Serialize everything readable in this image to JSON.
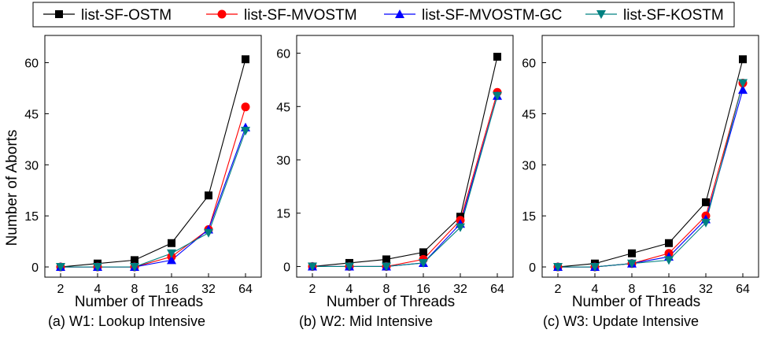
{
  "legend": {
    "entries": [
      {
        "label": "list-SF-OSTM",
        "color": "#000000",
        "marker": "square"
      },
      {
        "label": "list-SF-MVOSTM",
        "color": "#ff0000",
        "marker": "circle"
      },
      {
        "label": "list-SF-MVOSTM-GC",
        "color": "#0000ff",
        "marker": "triangle-up"
      },
      {
        "label": "list-SF-KOSTM",
        "color": "#008080",
        "marker": "triangle-down"
      }
    ]
  },
  "chart_data": [
    {
      "type": "line",
      "title": "(a) W1: Lookup Intensive",
      "xlabel": "Number of Threads",
      "ylabel": "Number of Aborts",
      "categories": [
        "2",
        "4",
        "8",
        "16",
        "32",
        "64"
      ],
      "yticks": [
        "0",
        "15",
        "30",
        "45",
        "60"
      ],
      "ylim": [
        -3,
        68
      ],
      "grid": false,
      "series": [
        {
          "name": "list-SF-OSTM",
          "values": [
            0,
            1,
            2,
            7,
            21,
            61
          ]
        },
        {
          "name": "list-SF-MVOSTM",
          "values": [
            0,
            0,
            0,
            3,
            11,
            47
          ]
        },
        {
          "name": "list-SF-MVOSTM-GC",
          "values": [
            0,
            0,
            0,
            2,
            11,
            41
          ]
        },
        {
          "name": "list-SF-KOSTM",
          "values": [
            0,
            0,
            0,
            4,
            10,
            40
          ]
        }
      ]
    },
    {
      "type": "line",
      "title": "(b) W2: Mid Intensive",
      "xlabel": "Number of Threads",
      "ylabel": "",
      "categories": [
        "2",
        "4",
        "8",
        "16",
        "32",
        "64"
      ],
      "yticks": [
        "0",
        "15",
        "30",
        "45",
        "60"
      ],
      "ylim": [
        -3,
        65
      ],
      "grid": false,
      "series": [
        {
          "name": "list-SF-OSTM",
          "values": [
            0,
            1,
            2,
            4,
            14,
            59
          ]
        },
        {
          "name": "list-SF-MVOSTM",
          "values": [
            0,
            0,
            0,
            2,
            13,
            49
          ]
        },
        {
          "name": "list-SF-MVOSTM-GC",
          "values": [
            0,
            0,
            0,
            1,
            12,
            48
          ]
        },
        {
          "name": "list-SF-KOSTM",
          "values": [
            0,
            0,
            0,
            1,
            11,
            48
          ]
        }
      ]
    },
    {
      "type": "line",
      "title": "(c) W3: Update Intensive",
      "xlabel": "Number of Threads",
      "ylabel": "",
      "categories": [
        "2",
        "4",
        "8",
        "16",
        "32",
        "64"
      ],
      "yticks": [
        "0",
        "15",
        "30",
        "45",
        "60"
      ],
      "ylim": [
        -3,
        68
      ],
      "grid": false,
      "series": [
        {
          "name": "list-SF-OSTM",
          "values": [
            0,
            1,
            4,
            7,
            19,
            61
          ]
        },
        {
          "name": "list-SF-MVOSTM",
          "values": [
            0,
            0,
            1,
            4,
            15,
            54
          ]
        },
        {
          "name": "list-SF-MVOSTM-GC",
          "values": [
            0,
            0,
            1,
            3,
            14,
            52
          ]
        },
        {
          "name": "list-SF-KOSTM",
          "values": [
            0,
            0,
            1,
            2,
            13,
            54
          ]
        }
      ]
    }
  ]
}
